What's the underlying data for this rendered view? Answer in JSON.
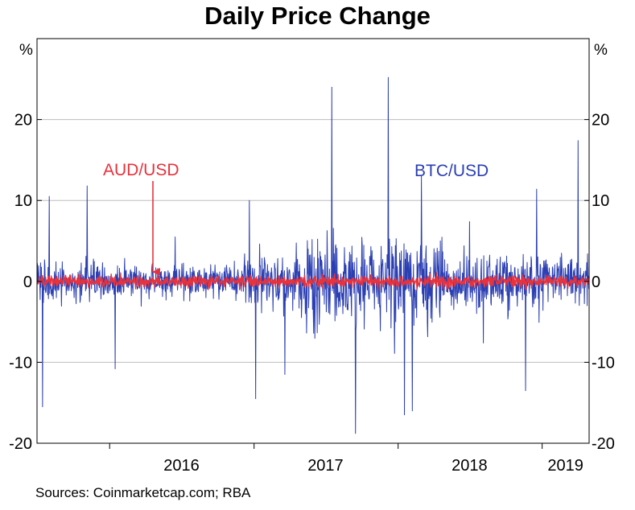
{
  "chart_data": {
    "type": "line",
    "title": "Daily Price Change",
    "ylabel_left": "%",
    "ylabel_right": "%",
    "ylim": [
      -20,
      30
    ],
    "yticks": [
      -20,
      -10,
      0,
      10,
      20
    ],
    "x_range": [
      "2015-07-01",
      "2019-04-30"
    ],
    "x_labels": [
      {
        "label": "2016",
        "date": "2016-07-01"
      },
      {
        "label": "2017",
        "date": "2017-07-01"
      },
      {
        "label": "2018",
        "date": "2018-07-01"
      },
      {
        "label": "2019",
        "date": "2019-03-01"
      }
    ],
    "x_ticks": [
      "2016-01-01",
      "2017-01-01",
      "2018-01-01",
      "2019-01-01"
    ],
    "grid": "horizontal",
    "series": [
      {
        "name": "BTC/USD",
        "color": "#2b3fb3",
        "peaks": [
          {
            "date": "2015-07-15",
            "value": -15.5
          },
          {
            "date": "2015-08-01",
            "value": 10.5
          },
          {
            "date": "2015-11-05",
            "value": 11.8
          },
          {
            "date": "2016-01-15",
            "value": -10.8
          },
          {
            "date": "2016-06-15",
            "value": 5.5
          },
          {
            "date": "2016-12-20",
            "value": 10.0
          },
          {
            "date": "2017-01-05",
            "value": -14.5
          },
          {
            "date": "2017-03-20",
            "value": -11.5
          },
          {
            "date": "2017-07-17",
            "value": 24.0
          },
          {
            "date": "2017-09-15",
            "value": -18.8
          },
          {
            "date": "2017-12-07",
            "value": 25.2
          },
          {
            "date": "2018-01-17",
            "value": -16.5
          },
          {
            "date": "2018-02-06",
            "value": -16.0
          },
          {
            "date": "2018-03-01",
            "value": 13.0
          },
          {
            "date": "2018-11-20",
            "value": -13.5
          },
          {
            "date": "2018-12-18",
            "value": 11.4
          },
          {
            "date": "2019-04-02",
            "value": 17.4
          }
        ]
      },
      {
        "name": "AUD/USD",
        "color": "#e8323c",
        "range": [
          -1.8,
          1.8
        ]
      }
    ],
    "annotations": [
      {
        "text": "AUD/USD",
        "color": "#e8323c",
        "arrow_to": {
          "date": "2016-05-10",
          "value": 0.5
        }
      },
      {
        "text": "BTC/USD",
        "color": "#2b3fb3"
      }
    ]
  },
  "footer": {
    "source": "Sources:   Coinmarketcap.com; RBA"
  }
}
